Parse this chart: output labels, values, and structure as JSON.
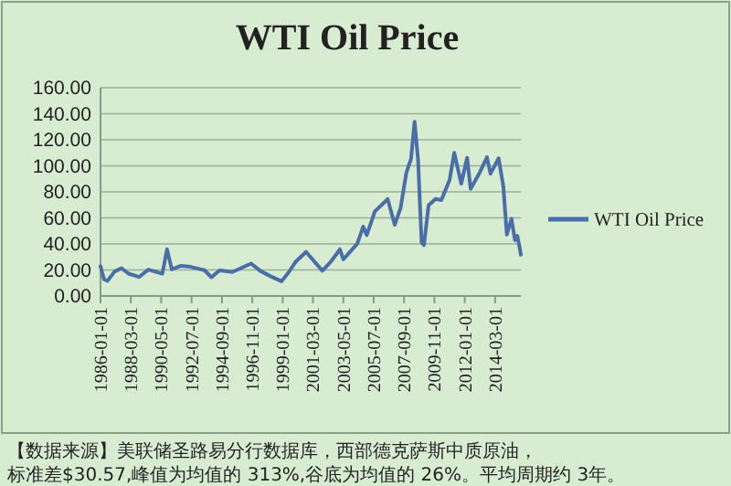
{
  "chart_data": {
    "type": "line",
    "title": "WTI Oil Price",
    "x": [
      "1986-01",
      "1986-04",
      "1986-07",
      "1987-01",
      "1987-07",
      "1988-01",
      "1988-10",
      "1989-06",
      "1990-06",
      "1990-10",
      "1991-02",
      "1991-10",
      "1992-06",
      "1993-06",
      "1993-12",
      "1994-07",
      "1995-06",
      "1996-10",
      "1997-06",
      "1998-03",
      "1998-12",
      "1999-06",
      "1999-12",
      "2000-09",
      "2001-11",
      "2002-06",
      "2003-02",
      "2003-05",
      "2004-05",
      "2004-10",
      "2005-01",
      "2005-08",
      "2006-07",
      "2007-01",
      "2007-06",
      "2007-11",
      "2008-03",
      "2008-06",
      "2008-09",
      "2008-12",
      "2009-02",
      "2009-06",
      "2009-12",
      "2010-05",
      "2010-12",
      "2011-04",
      "2011-10",
      "2012-03",
      "2012-06",
      "2013-02",
      "2013-08",
      "2013-11",
      "2014-06",
      "2014-10",
      "2015-01",
      "2015-05",
      "2015-08",
      "2015-10",
      "2015-12",
      "2016-01"
    ],
    "series": [
      {
        "name": "WTI Oil Price",
        "color": "#4a6ea8",
        "values": [
          22.9,
          12.8,
          11.6,
          18.7,
          21.4,
          17.2,
          14.6,
          20.3,
          17.1,
          35.9,
          20.5,
          23.2,
          22.4,
          19.8,
          14.4,
          19.6,
          18.4,
          24.9,
          19.2,
          15.0,
          11.3,
          17.9,
          26.1,
          33.9,
          19.4,
          26.0,
          35.8,
          28.1,
          40.3,
          53.3,
          46.8,
          65.0,
          74.4,
          54.6,
          67.5,
          94.8,
          105.4,
          133.9,
          104.1,
          41.1,
          39.1,
          69.6,
          74.5,
          73.7,
          89.2,
          110.0,
          86.3,
          106.2,
          82.3,
          95.3,
          106.6,
          93.9,
          105.8,
          84.4,
          47.2,
          59.3,
          42.9,
          46.2,
          37.2,
          31.7
        ]
      }
    ],
    "xlim": [
      "1986-01",
      "2016-01"
    ],
    "xticks": [
      {
        "value": "1986-01",
        "label": "1986-01-01"
      },
      {
        "value": "1988-03",
        "label": "1988-03-01"
      },
      {
        "value": "1990-05",
        "label": "1990-05-01"
      },
      {
        "value": "1992-07",
        "label": "1992-07-01"
      },
      {
        "value": "1994-09",
        "label": "1994-09-01"
      },
      {
        "value": "1996-11",
        "label": "1996-11-01"
      },
      {
        "value": "1999-01",
        "label": "1999-01-01"
      },
      {
        "value": "2001-03",
        "label": "2001-03-01"
      },
      {
        "value": "2003-05",
        "label": "2003-05-01"
      },
      {
        "value": "2005-07",
        "label": "2005-07-01"
      },
      {
        "value": "2007-09",
        "label": "2007-09-01"
      },
      {
        "value": "2009-11",
        "label": "2009-11-01"
      },
      {
        "value": "2012-01",
        "label": "2012-01-01"
      },
      {
        "value": "2014-03",
        "label": "2014-03-01"
      }
    ],
    "ylim": [
      0,
      160
    ],
    "yticks": [
      {
        "value": 0,
        "label": "0.00"
      },
      {
        "value": 20,
        "label": "20.00"
      },
      {
        "value": 40,
        "label": "40.00"
      },
      {
        "value": 60,
        "label": "60.00"
      },
      {
        "value": 80,
        "label": "80.00"
      },
      {
        "value": 100,
        "label": "100.00"
      },
      {
        "value": 120,
        "label": "120.00"
      },
      {
        "value": 140,
        "label": "140.00"
      },
      {
        "value": 160,
        "label": "160.00"
      }
    ],
    "grid": "y",
    "legend": "right",
    "line_style": "solid",
    "marker": "none",
    "annotations": [
      "【数据来源】美联储圣路易分行数据库，西部德克萨斯中质原油，",
      "标准差$30.57,峰值为均值的 313%,谷底为均值的 26%。平均周期约 3年。"
    ]
  }
}
